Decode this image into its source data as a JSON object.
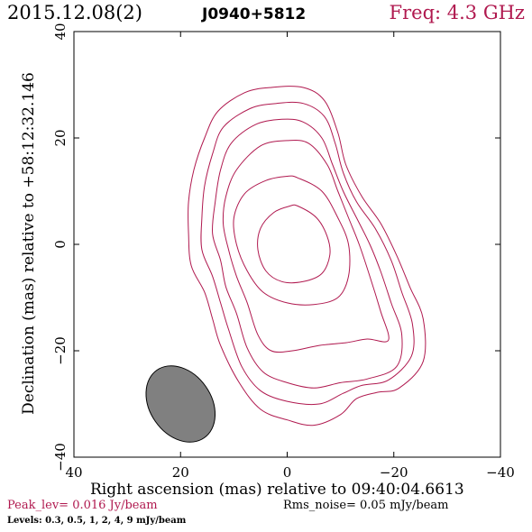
{
  "header": {
    "date": "2015.12.08(2)",
    "source": "J0940+5812",
    "freq": "Freq: 4.3 GHz"
  },
  "footer": {
    "peak": "Peak_lev=  0.016 Jy/beam",
    "rms": "Rms_noise= 0.05 mJy/beam",
    "levels": "Levels: 0.3, 0.5,    1,    2,    4,    9 mJy/beam"
  },
  "colors": {
    "contour": "#b0194f",
    "beam_fill": "#808080",
    "label_accent": "#b0194f"
  },
  "chart_data": {
    "type": "contour",
    "xlabel": "Right ascension (mas) relative to 09:40:04.6613",
    "ylabel": "Declination (mas) relative to +58:12:32.146",
    "xlim": [
      40,
      -40
    ],
    "ylim": [
      -40,
      40
    ],
    "x_ticks": [
      40,
      20,
      0,
      -20,
      -40
    ],
    "y_ticks": [
      -40,
      -20,
      0,
      20,
      40
    ],
    "x_tick_labels": [
      "40",
      "20",
      "0",
      "−20",
      "−40"
    ],
    "y_tick_labels": [
      "−40",
      "−20",
      "0",
      "20",
      "40"
    ],
    "contour_levels_mJy": [
      0.3,
      0.5,
      1,
      2,
      4,
      9
    ],
    "contours": [
      {
        "level": 0.3,
        "points": [
          [
            -3,
            29.5
          ],
          [
            -7,
            27
          ],
          [
            -9.5,
            21
          ],
          [
            -11,
            15
          ],
          [
            -14,
            9
          ],
          [
            -17.5,
            4
          ],
          [
            -20.5,
            -2
          ],
          [
            -23,
            -8
          ],
          [
            -25.5,
            -14
          ],
          [
            -25.5,
            -22
          ],
          [
            -21,
            -27
          ],
          [
            -17,
            -27.8
          ],
          [
            -13,
            -29
          ],
          [
            -10,
            -32
          ],
          [
            -5,
            -34
          ],
          [
            0,
            -33
          ],
          [
            5,
            -31
          ],
          [
            9,
            -26
          ],
          [
            12.5,
            -19
          ],
          [
            14,
            -14
          ],
          [
            15.5,
            -9
          ],
          [
            18,
            -4
          ],
          [
            18.5,
            2
          ],
          [
            18.5,
            8
          ],
          [
            17.5,
            14
          ],
          [
            15.5,
            20
          ],
          [
            13,
            25
          ],
          [
            8,
            28.5
          ],
          [
            3,
            29.5
          ]
        ]
      },
      {
        "level": 0.5,
        "points": [
          [
            -3,
            26.5
          ],
          [
            -7,
            24
          ],
          [
            -9,
            19
          ],
          [
            -10.5,
            13.5
          ],
          [
            -13,
            8
          ],
          [
            -16.5,
            3
          ],
          [
            -19.5,
            -3
          ],
          [
            -21.5,
            -9
          ],
          [
            -23.5,
            -15
          ],
          [
            -23.3,
            -21
          ],
          [
            -19,
            -25.5
          ],
          [
            -14,
            -26.5
          ],
          [
            -10.5,
            -28
          ],
          [
            -6,
            -30
          ],
          [
            0,
            -29.5
          ],
          [
            5,
            -27.5
          ],
          [
            8.5,
            -23
          ],
          [
            11,
            -16
          ],
          [
            12.5,
            -11
          ],
          [
            14,
            -6
          ],
          [
            16,
            -1
          ],
          [
            16,
            5
          ],
          [
            15.5,
            11
          ],
          [
            14,
            17
          ],
          [
            12,
            22
          ],
          [
            7,
            25.5
          ],
          [
            2,
            26.5
          ]
        ]
      },
      {
        "level": 1,
        "points": [
          [
            -3,
            23
          ],
          [
            -6.5,
            20
          ],
          [
            -8.5,
            15
          ],
          [
            -10.5,
            10
          ],
          [
            -13,
            5
          ],
          [
            -15.5,
            0
          ],
          [
            -17.5,
            -5
          ],
          [
            -19.5,
            -11
          ],
          [
            -21.5,
            -17
          ],
          [
            -20.5,
            -23
          ],
          [
            -15,
            -25.3
          ],
          [
            -10,
            -26
          ],
          [
            -5,
            -27
          ],
          [
            0,
            -26
          ],
          [
            4.5,
            -24
          ],
          [
            7.5,
            -19.5
          ],
          [
            9.5,
            -13
          ],
          [
            11.5,
            -8
          ],
          [
            12.5,
            -3
          ],
          [
            14,
            2
          ],
          [
            13.5,
            8
          ],
          [
            12.5,
            14
          ],
          [
            10.5,
            19
          ],
          [
            6,
            22.5
          ],
          [
            1,
            23.5
          ]
        ]
      },
      {
        "level": 2,
        "points": [
          [
            -4,
            19
          ],
          [
            -7.5,
            15
          ],
          [
            -9.5,
            10
          ],
          [
            -11.5,
            5
          ],
          [
            -13.5,
            0
          ],
          [
            -15.5,
            -6
          ],
          [
            -17.5,
            -12.5
          ],
          [
            -19,
            -18
          ],
          [
            -15,
            -17.8
          ],
          [
            -11,
            -18.5
          ],
          [
            -6,
            -19
          ],
          [
            -1,
            -20
          ],
          [
            3,
            -20
          ],
          [
            5.5,
            -17
          ],
          [
            7.5,
            -11
          ],
          [
            9.5,
            -6
          ],
          [
            11,
            -1
          ],
          [
            12,
            4
          ],
          [
            11.5,
            9
          ],
          [
            9.5,
            14
          ],
          [
            5,
            18.5
          ],
          [
            0,
            19.5
          ]
        ]
      },
      {
        "level": 4,
        "points": [
          [
            -2,
            12.5
          ],
          [
            -6.5,
            10
          ],
          [
            -9.5,
            5
          ],
          [
            -11.5,
            0
          ],
          [
            -11.5,
            -6
          ],
          [
            -9.5,
            -10
          ],
          [
            -5,
            -11.3
          ],
          [
            0,
            -11
          ],
          [
            4.5,
            -9
          ],
          [
            7.5,
            -5
          ],
          [
            9.5,
            0
          ],
          [
            10,
            5
          ],
          [
            8,
            9.5
          ],
          [
            4,
            12
          ],
          [
            0,
            12.8
          ]
        ]
      },
      {
        "level": 9,
        "points": [
          [
            -2,
            7.2
          ],
          [
            -5.5,
            5
          ],
          [
            -7.5,
            1.5
          ],
          [
            -8,
            -2
          ],
          [
            -6.5,
            -5.5
          ],
          [
            -3,
            -7
          ],
          [
            1,
            -7
          ],
          [
            4,
            -5
          ],
          [
            5.5,
            -1
          ],
          [
            5,
            3
          ],
          [
            2.5,
            6
          ],
          [
            -0.5,
            7.2
          ]
        ]
      }
    ],
    "beam": {
      "center": [
        20,
        -30
      ],
      "major_mas": 15.5,
      "minor_mas": 11.5,
      "pa_deg": -35
    }
  }
}
